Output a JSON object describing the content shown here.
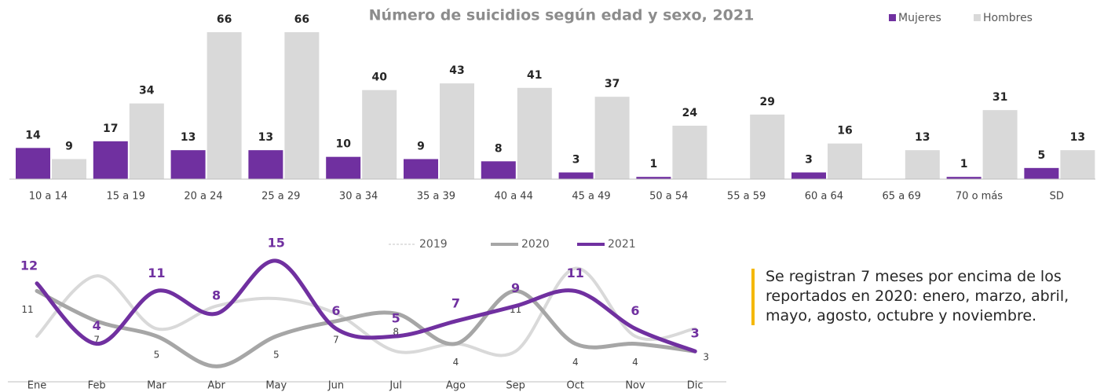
{
  "charts": [
    {
      "type": "bar",
      "title": "Número de suicidios según edad y sexo, 2021",
      "categories": [
        "10 a 14",
        "15 a 19",
        "20 a 24",
        "25 a 29",
        "30 a 34",
        "35 a 39",
        "40 a 44",
        "45 a 49",
        "50 a 54",
        "55 a 59",
        "60 a 64",
        "65 a 69",
        "70 o más",
        "SD"
      ],
      "series": [
        {
          "name": "Mujeres",
          "color": "#7030a0",
          "values": [
            14,
            17,
            13,
            13,
            10,
            9,
            8,
            3,
            1,
            null,
            3,
            null,
            1,
            5
          ]
        },
        {
          "name": "Hombres",
          "color": "#d9d9d9",
          "values": [
            9,
            34,
            66,
            66,
            40,
            43,
            41,
            37,
            24,
            29,
            16,
            13,
            31,
            13
          ]
        }
      ],
      "legend": "top-right"
    },
    {
      "type": "line",
      "categories": [
        "Ene",
        "Feb",
        "Mar",
        "Abr",
        "May",
        "Jun",
        "Jul",
        "Ago",
        "Sep",
        "Oct",
        "Nov",
        "Dic"
      ],
      "series": [
        {
          "name": "2019",
          "color": "#d9d9d9",
          "values": [
            5,
            13,
            6,
            9,
            10,
            8,
            3,
            4,
            3,
            14,
            5,
            6
          ]
        },
        {
          "name": "2020",
          "color": "#a6a6a6",
          "values": [
            11,
            7,
            5,
            1,
            5,
            7,
            8,
            4,
            11,
            4,
            4,
            3
          ],
          "labeled": [
            true,
            true,
            true,
            false,
            true,
            true,
            true,
            true,
            true,
            true,
            true,
            true
          ]
        },
        {
          "name": "2021",
          "color": "#7030a0",
          "values": [
            12,
            4,
            11,
            8,
            15,
            6,
            5,
            7,
            9,
            11,
            6,
            3
          ]
        }
      ],
      "legend": "top"
    }
  ],
  "note": {
    "lines": [
      "Se registran 7 meses por encima de los",
      "reportados en 2020: enero, marzo, abril,",
      "mayo, agosto, octubre y noviembre."
    ]
  }
}
